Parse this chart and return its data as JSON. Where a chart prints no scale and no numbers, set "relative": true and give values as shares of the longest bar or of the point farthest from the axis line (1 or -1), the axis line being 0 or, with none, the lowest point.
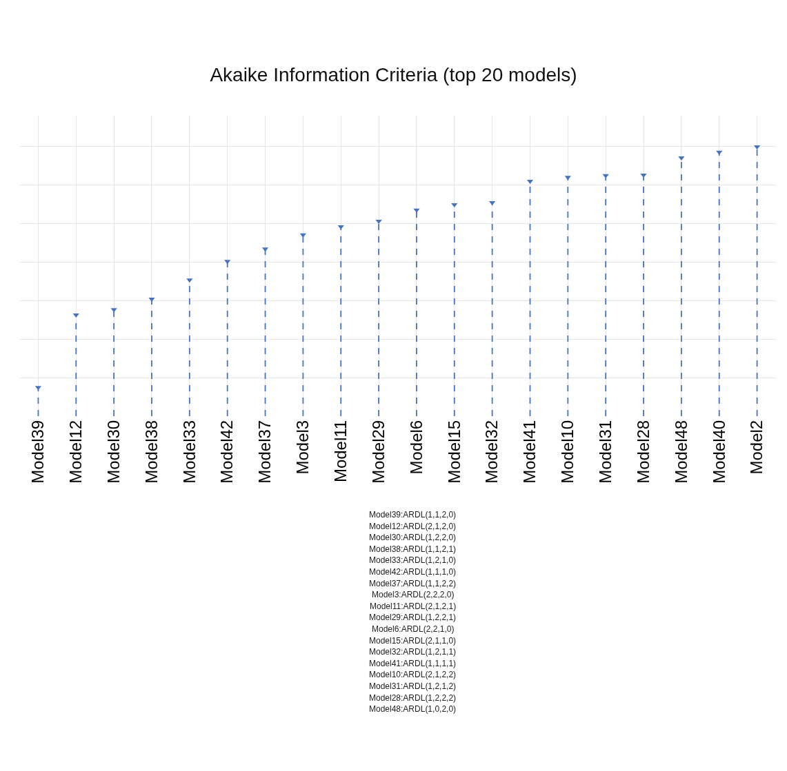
{
  "chart_data": {
    "type": "lollipop",
    "title": "Akaike Information Criteria (top 20 models)",
    "relative": true,
    "marker": "triangle",
    "line_style": "dashed",
    "grid": true,
    "categories": [
      "Model39",
      "Model12",
      "Model30",
      "Model38",
      "Model33",
      "Model42",
      "Model37",
      "Model3",
      "Model11",
      "Model29",
      "Model6",
      "Model15",
      "Model32",
      "Model41",
      "Model10",
      "Model31",
      "Model28",
      "Model48",
      "Model40",
      "Model2"
    ],
    "series": [
      {
        "color": "#4472c4",
        "values": [
          0.107,
          0.376,
          0.396,
          0.435,
          0.506,
          0.575,
          0.621,
          0.673,
          0.703,
          0.724,
          0.765,
          0.785,
          0.793,
          0.872,
          0.887,
          0.893,
          0.895,
          0.959,
          0.98,
          1
        ]
      }
    ],
    "annotations": [
      "Model39:ARDL(1,1,2,0)",
      "Model12:ARDL(2,1,2,0)",
      "Model30:ARDL(1,2,2,0)",
      "Model38:ARDL(1,1,2,1)",
      "Model33:ARDL(1,2,1,0)",
      "Model42:ARDL(1,1,1,0)",
      "Model37:ARDL(1,1,2,2)",
      "Model3:ARDL(2,2,2,0)",
      "Model11:ARDL(2,1,2,1)",
      "Model29:ARDL(1,2,2,1)",
      "Model6:ARDL(2,2,1,0)",
      "Model15:ARDL(2,1,1,0)",
      "Model32:ARDL(1,2,1,1)",
      "Model41:ARDL(1,1,1,1)",
      "Model10:ARDL(2,1,2,2)",
      "Model31:ARDL(1,2,1,2)",
      "Model28:ARDL(1,2,2,2)",
      "Model48:ARDL(1,0,2,0)"
    ]
  }
}
